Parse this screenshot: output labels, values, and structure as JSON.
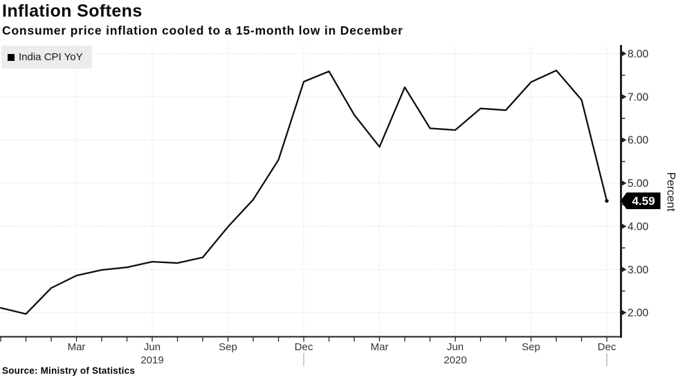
{
  "header": {
    "title": "Inflation Softens",
    "subtitle": "Consumer price inflation cooled to a 15-month low in December"
  },
  "legend": {
    "position": "top-left",
    "items": [
      {
        "label": "India CPI YoY",
        "marker": "black-square",
        "color": "#000000"
      }
    ]
  },
  "footer": {
    "source": "Source: Ministry of Statistics"
  },
  "colors": {
    "background": "#ffffff",
    "line": "#0f0f0f",
    "grid": "#d8d8d8",
    "axis": "#1f1f1f",
    "tick_label": "#262626",
    "month_label": "#333333",
    "year_divider": "#9a9a9a",
    "legend_bg": "#ececec",
    "tag_bg": "#000000",
    "tag_text": "#ffffff"
  },
  "chart_data": {
    "type": "line",
    "title": "Inflation Softens",
    "subtitle": "Consumer price inflation cooled to a 15-month low in December",
    "xlabel": "",
    "ylabel": "Percent",
    "grid": "dotted",
    "legend_position": "top-left",
    "ylim": [
      1.45,
      8.18
    ],
    "y_major_ticks": [
      2,
      3,
      4,
      5,
      6,
      7,
      8
    ],
    "y_tick_labels": [
      "2.00",
      "3.00",
      "4.00",
      "5.00",
      "6.00",
      "7.00",
      "8.00"
    ],
    "y_minor_ticks": [
      2.5,
      3.5,
      4.5,
      5.5,
      6.5,
      7.5
    ],
    "x": [
      "Dec 2018",
      "Jan 2019",
      "Feb 2019",
      "Mar 2019",
      "Apr 2019",
      "May 2019",
      "Jun 2019",
      "Jul 2019",
      "Aug 2019",
      "Sep 2019",
      "Oct 2019",
      "Nov 2019",
      "Dec 2019",
      "Jan 2020",
      "Feb 2020",
      "Mar 2020",
      "Apr 2020",
      "May 2020",
      "Jun 2020",
      "Jul 2020",
      "Aug 2020",
      "Sep 2020",
      "Oct 2020",
      "Nov 2020",
      "Dec 2020"
    ],
    "series": [
      {
        "name": "India CPI YoY",
        "color": "#0f0f0f",
        "values": [
          2.11,
          1.97,
          2.57,
          2.86,
          2.99,
          3.05,
          3.18,
          3.15,
          3.28,
          3.99,
          4.62,
          5.54,
          7.35,
          7.59,
          6.58,
          5.84,
          7.22,
          6.27,
          6.23,
          6.73,
          6.69,
          7.34,
          7.61,
          6.93,
          4.59
        ]
      }
    ],
    "x_quarter_ticks": [
      {
        "index": 3,
        "label": "Mar"
      },
      {
        "index": 6,
        "label": "Jun"
      },
      {
        "index": 9,
        "label": "Sep"
      },
      {
        "index": 12,
        "label": "Dec"
      },
      {
        "index": 15,
        "label": "Mar"
      },
      {
        "index": 18,
        "label": "Jun"
      },
      {
        "index": 21,
        "label": "Sep"
      },
      {
        "index": 24,
        "label": "Dec"
      }
    ],
    "year_labels": [
      {
        "index": 6,
        "label": "2019"
      },
      {
        "index": 18,
        "label": "2020"
      }
    ],
    "year_divider_indices": [
      12,
      24
    ],
    "last_value_label": "4.59",
    "last_value": 4.59
  }
}
